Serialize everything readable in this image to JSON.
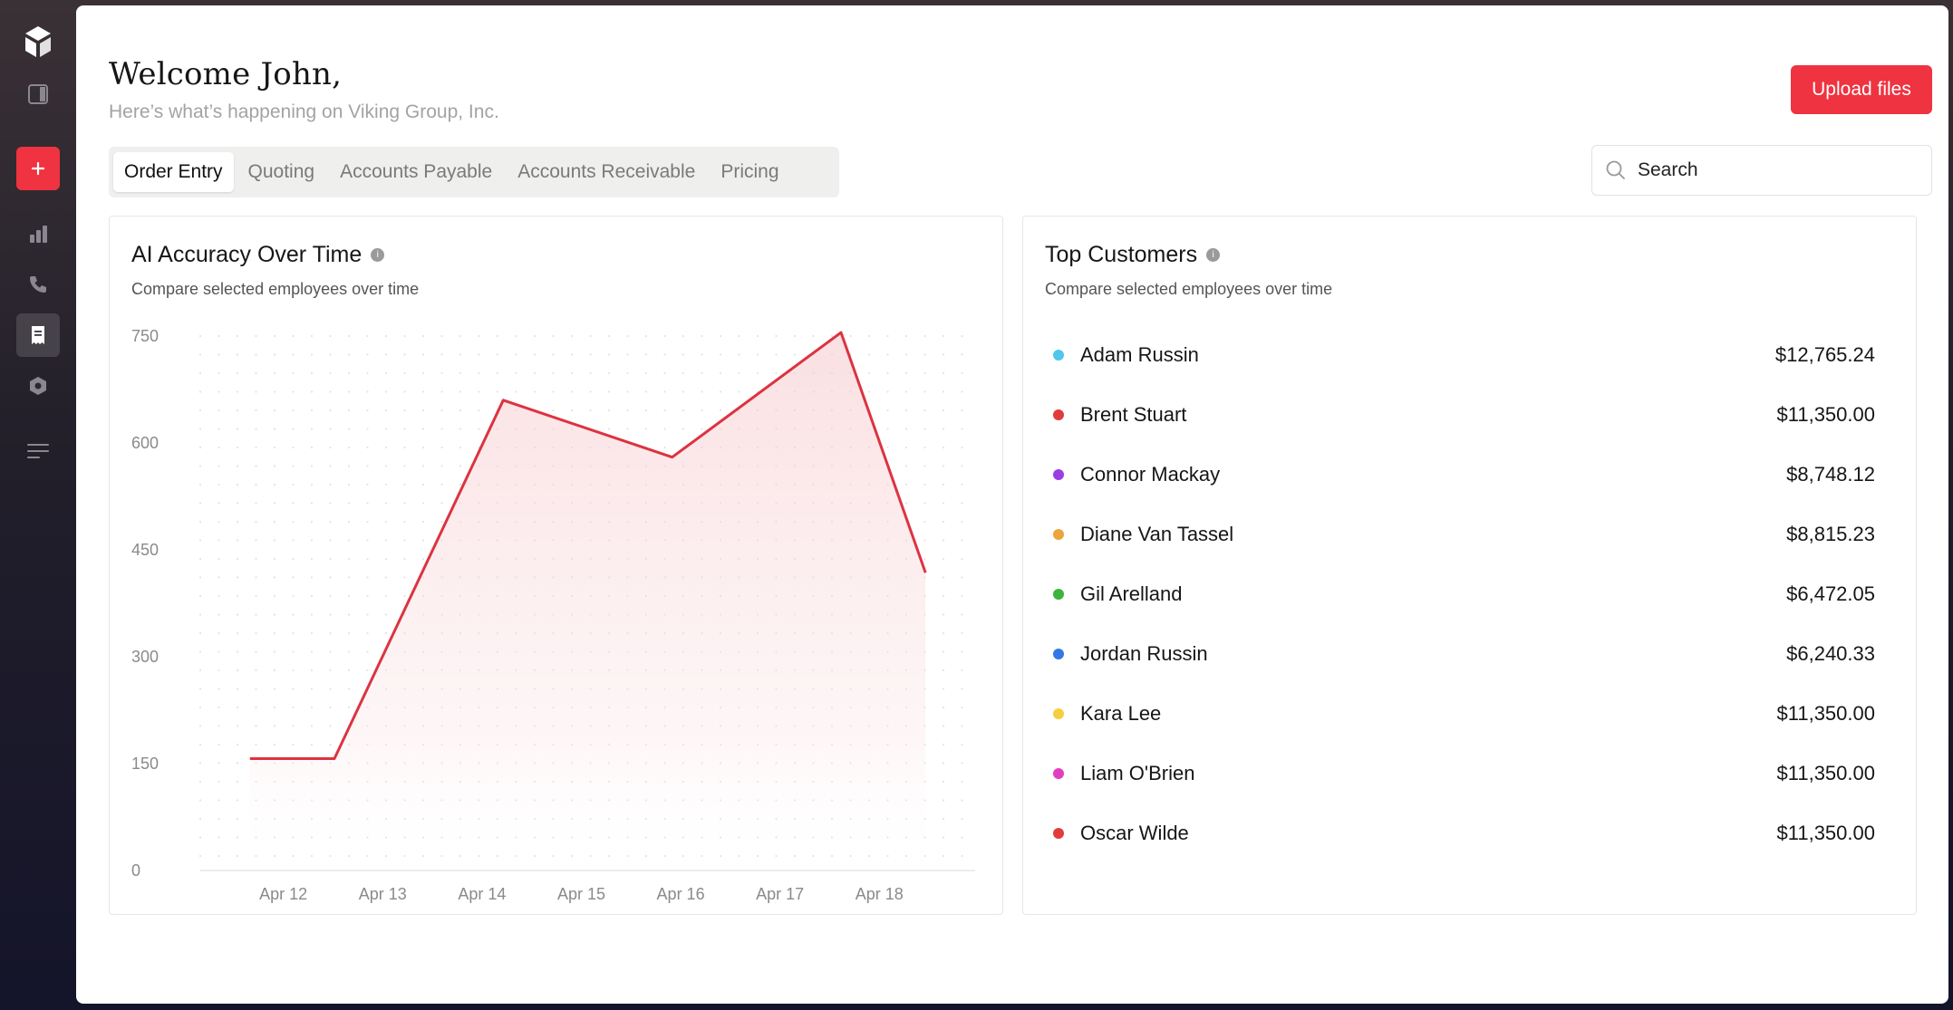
{
  "sidebar": {
    "items": [
      {
        "name": "logo",
        "icon": "logo-icon"
      },
      {
        "name": "panel-toggle",
        "icon": "sidebar-toggle-icon"
      },
      {
        "name": "add",
        "icon": "plus-icon"
      },
      {
        "name": "analytics",
        "icon": "bar-chart-icon"
      },
      {
        "name": "calls",
        "icon": "phone-icon"
      },
      {
        "name": "orders",
        "icon": "receipt-icon",
        "active": true
      },
      {
        "name": "integrations",
        "icon": "hexagon-icon"
      },
      {
        "name": "menu",
        "icon": "list-icon"
      }
    ]
  },
  "header": {
    "welcome": "Welcome John,",
    "subtitle": "Here’s what’s happening on Viking Group, Inc.",
    "upload_label": "Upload files"
  },
  "tabs": [
    {
      "label": "Order Entry",
      "active": true
    },
    {
      "label": "Quoting",
      "active": false
    },
    {
      "label": "Accounts Payable",
      "active": false
    },
    {
      "label": "Accounts Receivable",
      "active": false
    },
    {
      "label": "Pricing",
      "active": false
    }
  ],
  "search": {
    "placeholder": "Search"
  },
  "accuracy_card": {
    "title": "AI Accuracy Over Time",
    "subtitle": "Compare selected employees over time"
  },
  "chart_data": {
    "type": "area",
    "title": "AI Accuracy Over Time",
    "subtitle": "Compare selected employees over time",
    "xlabel": "",
    "ylabel": "",
    "yticks": [
      0,
      150,
      300,
      450,
      600,
      750
    ],
    "ylim": [
      0,
      750
    ],
    "categories": [
      "Apr 12",
      "Apr 13",
      "Apr 14",
      "Apr 15",
      "Apr 16",
      "Apr 17",
      "Apr 18"
    ],
    "x": [
      11.5,
      12.35,
      14.05,
      15.75,
      17.45,
      18.3
    ],
    "values": [
      157,
      157,
      660,
      580,
      755,
      418
    ],
    "grid": "dotted",
    "line_color": "#dc3340",
    "fill_color": "#fbe2e4"
  },
  "customers_card": {
    "title": "Top Customers",
    "subtitle": "Compare selected employees over time",
    "rows": [
      {
        "name": "Adam Russin",
        "amount": "$12,765.24",
        "color": "#4fc8ea"
      },
      {
        "name": "Brent Stuart",
        "amount": "$11,350.00",
        "color": "#e23b3b"
      },
      {
        "name": "Connor Mackay",
        "amount": "$8,748.12",
        "color": "#9b3fe3"
      },
      {
        "name": "Diane Van Tassel",
        "amount": "$8,815.23",
        "color": "#eca43c"
      },
      {
        "name": "Gil Arelland",
        "amount": "$6,472.05",
        "color": "#3cb43c"
      },
      {
        "name": "Jordan Russin",
        "amount": "$6,240.33",
        "color": "#3478e6"
      },
      {
        "name": "Kara Lee",
        "amount": "$11,350.00",
        "color": "#f5cf3f"
      },
      {
        "name": "Liam O'Brien",
        "amount": "$11,350.00",
        "color": "#e23fc0"
      },
      {
        "name": "Oscar Wilde",
        "amount": "$11,350.00",
        "color": "#e23b3b"
      }
    ]
  }
}
